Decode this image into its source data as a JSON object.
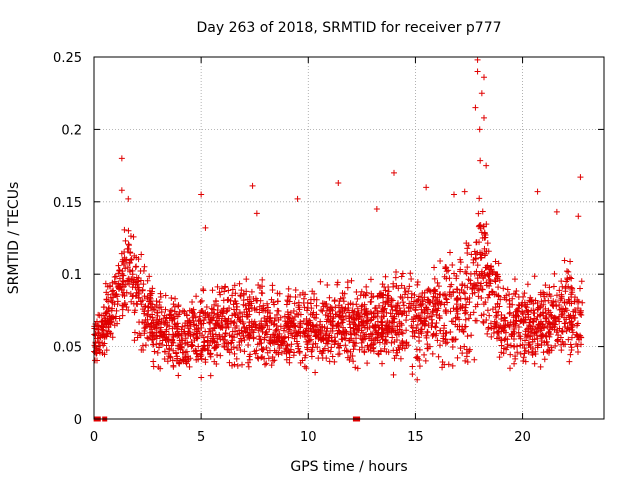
{
  "chart_data": {
    "type": "scatter",
    "title": "Day 263 of 2018, SRMTID for receiver p777",
    "xlabel": "GPS time / hours",
    "ylabel": "SRMTID / TECUs",
    "xlim": [
      0,
      23.8
    ],
    "ylim": [
      0,
      0.25
    ],
    "xticks": [
      0,
      5,
      10,
      15,
      20
    ],
    "xtick_labels": [
      "0",
      "5",
      "10",
      "15",
      "20"
    ],
    "yticks": [
      0,
      0.05,
      0.1,
      0.15,
      0.2,
      0.25
    ],
    "ytick_labels": [
      "0",
      "0.05",
      "0.1",
      "0.15",
      "0.2",
      "0.25"
    ],
    "grid": true,
    "marker": "plus",
    "color": "#e00000",
    "zero_markers": [
      0.1,
      0.2,
      0.5,
      12.2,
      12.3
    ],
    "envelope": [
      {
        "t": 0.0,
        "low": 0.03,
        "high": 0.075
      },
      {
        "t": 1.0,
        "low": 0.04,
        "high": 0.12
      },
      {
        "t": 1.5,
        "low": 0.05,
        "high": 0.155
      },
      {
        "t": 2.0,
        "low": 0.04,
        "high": 0.13
      },
      {
        "t": 3.0,
        "low": 0.025,
        "high": 0.1
      },
      {
        "t": 4.0,
        "low": 0.02,
        "high": 0.09
      },
      {
        "t": 5.0,
        "low": 0.02,
        "high": 0.1
      },
      {
        "t": 6.0,
        "low": 0.025,
        "high": 0.1
      },
      {
        "t": 7.0,
        "low": 0.025,
        "high": 0.11
      },
      {
        "t": 8.0,
        "low": 0.02,
        "high": 0.1
      },
      {
        "t": 9.0,
        "low": 0.025,
        "high": 0.1
      },
      {
        "t": 10.0,
        "low": 0.025,
        "high": 0.1
      },
      {
        "t": 11.0,
        "low": 0.025,
        "high": 0.1
      },
      {
        "t": 12.0,
        "low": 0.03,
        "high": 0.1
      },
      {
        "t": 13.0,
        "low": 0.03,
        "high": 0.105
      },
      {
        "t": 14.0,
        "low": 0.025,
        "high": 0.11
      },
      {
        "t": 15.0,
        "low": 0.02,
        "high": 0.115
      },
      {
        "t": 16.0,
        "low": 0.025,
        "high": 0.12
      },
      {
        "t": 17.0,
        "low": 0.02,
        "high": 0.13
      },
      {
        "t": 17.6,
        "low": 0.02,
        "high": 0.15
      },
      {
        "t": 18.0,
        "low": 0.04,
        "high": 0.2
      },
      {
        "t": 18.5,
        "low": 0.04,
        "high": 0.14
      },
      {
        "t": 19.0,
        "low": 0.03,
        "high": 0.11
      },
      {
        "t": 20.0,
        "low": 0.03,
        "high": 0.1
      },
      {
        "t": 21.0,
        "low": 0.025,
        "high": 0.11
      },
      {
        "t": 22.0,
        "low": 0.025,
        "high": 0.12
      },
      {
        "t": 22.8,
        "low": 0.03,
        "high": 0.11
      }
    ],
    "outliers": [
      {
        "x": 1.3,
        "y": 0.18
      },
      {
        "x": 1.3,
        "y": 0.158
      },
      {
        "x": 1.6,
        "y": 0.152
      },
      {
        "x": 5.0,
        "y": 0.155
      },
      {
        "x": 5.2,
        "y": 0.132
      },
      {
        "x": 7.4,
        "y": 0.161
      },
      {
        "x": 7.6,
        "y": 0.142
      },
      {
        "x": 9.5,
        "y": 0.152
      },
      {
        "x": 11.4,
        "y": 0.163
      },
      {
        "x": 13.2,
        "y": 0.145
      },
      {
        "x": 14.0,
        "y": 0.17
      },
      {
        "x": 15.5,
        "y": 0.16
      },
      {
        "x": 16.8,
        "y": 0.155
      },
      {
        "x": 17.3,
        "y": 0.157
      },
      {
        "x": 17.9,
        "y": 0.248
      },
      {
        "x": 17.9,
        "y": 0.24
      },
      {
        "x": 18.2,
        "y": 0.236
      },
      {
        "x": 18.1,
        "y": 0.225
      },
      {
        "x": 17.8,
        "y": 0.215
      },
      {
        "x": 18.2,
        "y": 0.208
      },
      {
        "x": 18.0,
        "y": 0.2
      },
      {
        "x": 18.3,
        "y": 0.175
      },
      {
        "x": 20.7,
        "y": 0.157
      },
      {
        "x": 21.6,
        "y": 0.143
      },
      {
        "x": 22.7,
        "y": 0.167
      },
      {
        "x": 22.6,
        "y": 0.14
      }
    ]
  }
}
